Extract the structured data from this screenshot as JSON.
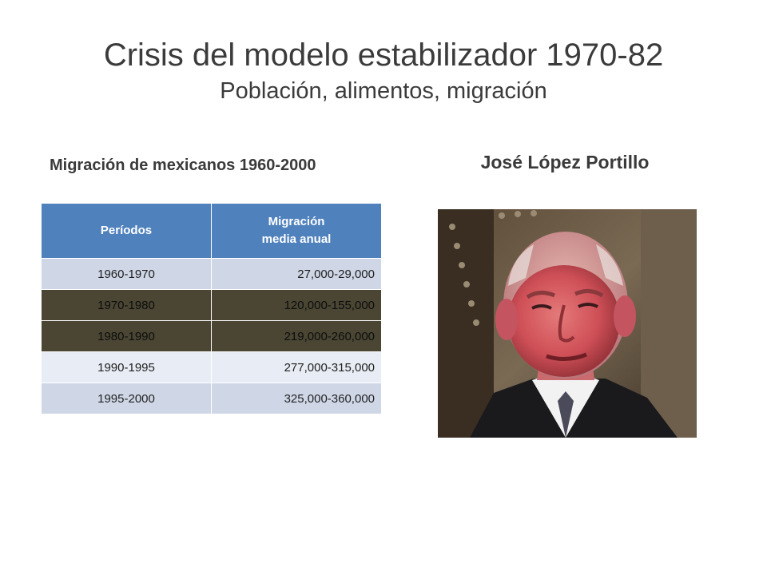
{
  "title": {
    "main": "Crisis del modelo estabilizador 1970-82",
    "sub": "Población, alimentos, migración"
  },
  "left_heading": "Migración de mexicanos 1960-2000",
  "right_heading": "José López Portillo",
  "table": {
    "headers": [
      "Períodos",
      "Migración",
      "media anual"
    ],
    "rows": [
      {
        "period": "1960-1970",
        "value": "27,000-29,000"
      },
      {
        "period": "1970-1980",
        "value": "120,000-155,000"
      },
      {
        "period": "1980-1990",
        "value": "219,000-260,000"
      },
      {
        "period": "1990-1995",
        "value": "277,000-315,000"
      },
      {
        "period": "1995-2000",
        "value": "325,000-360,000"
      }
    ]
  },
  "colors": {
    "header_blue": "#4f81bd",
    "row_light": "#cfd7e7",
    "row_dark": "#4a4633",
    "row_pale": "#e8ecf4"
  }
}
